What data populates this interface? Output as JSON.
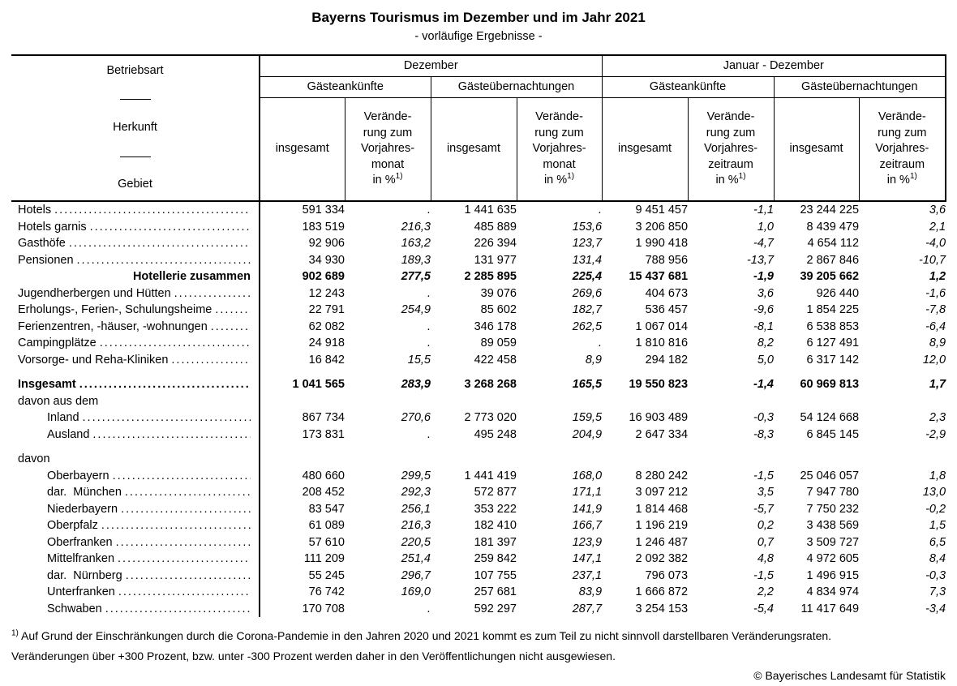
{
  "page": {
    "title": "Bayerns Tourismus im Dezember und im Jahr 2021",
    "subtitle": "- vorläufige Ergebnisse -",
    "footnote_marker": "1)",
    "footnote_line1": "Auf Grund der Einschränkungen durch die Corona-Pandemie in den Jahren 2020 und 2021 kommt es zum Teil zu nicht sinnvoll darstellbaren Veränderungsraten.",
    "footnote_line2": "Veränderungen über +300 Prozent, bzw. unter -300 Prozent werden daher in den Veröffentlichungen nicht ausgewiesen.",
    "copyright": "© Bayerisches Landesamt für Statistik"
  },
  "table": {
    "stub_header": {
      "line1": "Betriebsart",
      "line2": "Herkunft",
      "line3": "Gebiet"
    },
    "col_groups": [
      {
        "label": "Dezember",
        "subgroups": [
          {
            "label": "Gästeankünfte",
            "cols": [
              "insgesamt",
              "Verände-\nrung zum\nVorjahres-\nmonat\nin %"
            ]
          },
          {
            "label": "Gästeübernachtungen",
            "cols": [
              "insgesamt",
              "Verände-\nrung zum\nVorjahres-\nmonat\nin %"
            ]
          }
        ]
      },
      {
        "label": "Januar - Dezember",
        "subgroups": [
          {
            "label": "Gästeankünfte",
            "cols": [
              "insgesamt",
              "Verände-\nrung zum\nVorjahres-\nzeitraum\nin %"
            ]
          },
          {
            "label": "Gästeübernachtungen",
            "cols": [
              "insgesamt",
              "Verände-\nrung zum\nVorjahres-\nzeitraum\nin %"
            ]
          }
        ]
      }
    ],
    "rows": [
      {
        "label": "Hotels",
        "dots": true,
        "values": [
          "591 334",
          ".",
          "1 441 635",
          ".",
          "9 451 457",
          "-1,1",
          "23 244 225",
          "3,6"
        ]
      },
      {
        "label": "Hotels garnis",
        "dots": true,
        "values": [
          "183 519",
          "216,3",
          "485 889",
          "153,6",
          "3 206 850",
          "1,0",
          "8 439 479",
          "2,1"
        ]
      },
      {
        "label": "Gasthöfe",
        "dots": true,
        "values": [
          "92 906",
          "163,2",
          "226 394",
          "123,7",
          "1 990 418",
          "-4,7",
          "4 654 112",
          "-4,0"
        ]
      },
      {
        "label": "Pensionen",
        "dots": true,
        "values": [
          "34 930",
          "189,3",
          "131 977",
          "131,4",
          "788 956",
          "-13,7",
          "2 867 846",
          "-10,7"
        ]
      },
      {
        "label": "Hotellerie zusammen",
        "bold": true,
        "labelRight": true,
        "values": [
          "902 689",
          "277,5",
          "2 285 895",
          "225,4",
          "15 437 681",
          "-1,9",
          "39 205 662",
          "1,2"
        ]
      },
      {
        "label": "Jugendherbergen und Hütten",
        "dots": true,
        "values": [
          "12 243",
          ".",
          "39 076",
          "269,6",
          "404 673",
          "3,6",
          "926 440",
          "-1,6"
        ]
      },
      {
        "label": "Erholungs-, Ferien-, Schulungsheime",
        "dots": true,
        "values": [
          "22 791",
          "254,9",
          "85 602",
          "182,7",
          "536 457",
          "-9,6",
          "1 854 225",
          "-7,8"
        ]
      },
      {
        "label": "Ferienzentren, -häuser, -wohnungen",
        "dots": true,
        "values": [
          "62 082",
          ".",
          "346 178",
          "262,5",
          "1 067 014",
          "-8,1",
          "6 538 853",
          "-6,4"
        ]
      },
      {
        "label": "Campingplätze",
        "dots": true,
        "values": [
          "24 918",
          ".",
          "89 059",
          ".",
          "1 810 816",
          "8,2",
          "6 127 491",
          "8,9"
        ]
      },
      {
        "label": "Vorsorge- und Reha-Kliniken",
        "dots": true,
        "values": [
          "16 842",
          "15,5",
          "422 458",
          "8,9",
          "294 182",
          "5,0",
          "6 317 142",
          "12,0"
        ]
      },
      {
        "type": "spacer"
      },
      {
        "label": "Insgesamt",
        "bold": true,
        "dots": true,
        "values": [
          "1 041 565",
          "283,9",
          "3 268 268",
          "165,5",
          "19 550 823",
          "-1,4",
          "60 969 813",
          "1,7"
        ]
      },
      {
        "label": "davon aus dem",
        "labelOnly": true
      },
      {
        "label": "Inland",
        "indent": 1,
        "dots": true,
        "values": [
          "867 734",
          "270,6",
          "2 773 020",
          "159,5",
          "16 903 489",
          "-0,3",
          "54 124 668",
          "2,3"
        ]
      },
      {
        "label": "Ausland",
        "indent": 1,
        "dots": true,
        "values": [
          "173 831",
          ".",
          "495 248",
          "204,9",
          "2 647 334",
          "-8,3",
          "6 845 145",
          "-2,9"
        ]
      },
      {
        "type": "spacer"
      },
      {
        "label": "davon",
        "labelOnly": true
      },
      {
        "label": "Oberbayern",
        "indent": 1,
        "dots": true,
        "values": [
          "480 660",
          "299,5",
          "1 441 419",
          "168,0",
          "8 280 242",
          "-1,5",
          "25 046 057",
          "1,8"
        ]
      },
      {
        "label": "dar.  München",
        "indent": 1,
        "dots": true,
        "values": [
          "208 452",
          "292,3",
          "572 877",
          "171,1",
          "3 097 212",
          "3,5",
          "7 947 780",
          "13,0"
        ]
      },
      {
        "label": "Niederbayern",
        "indent": 1,
        "dots": true,
        "values": [
          "83 547",
          "256,1",
          "353 222",
          "141,9",
          "1 814 468",
          "-5,7",
          "7 750 232",
          "-0,2"
        ]
      },
      {
        "label": "Oberpfalz",
        "indent": 1,
        "dots": true,
        "values": [
          "61 089",
          "216,3",
          "182 410",
          "166,7",
          "1 196 219",
          "0,2",
          "3 438 569",
          "1,5"
        ]
      },
      {
        "label": "Oberfranken",
        "indent": 1,
        "dots": true,
        "values": [
          "57 610",
          "220,5",
          "181 397",
          "123,9",
          "1 246 487",
          "0,7",
          "3 509 727",
          "6,5"
        ]
      },
      {
        "label": "Mittelfranken",
        "indent": 1,
        "dots": true,
        "values": [
          "111 209",
          "251,4",
          "259 842",
          "147,1",
          "2 092 382",
          "4,8",
          "4 972 605",
          "8,4"
        ]
      },
      {
        "label": "dar.  Nürnberg",
        "indent": 1,
        "dots": true,
        "values": [
          "55 245",
          "296,7",
          "107 755",
          "237,1",
          "796 073",
          "-1,5",
          "1 496 915",
          "-0,3"
        ]
      },
      {
        "label": "Unterfranken",
        "indent": 1,
        "dots": true,
        "values": [
          "76 742",
          "169,0",
          "257 681",
          "83,9",
          "1 666 872",
          "2,2",
          "4 834 974",
          "7,3"
        ]
      },
      {
        "label": "Schwaben",
        "indent": 1,
        "dots": true,
        "values": [
          "170 708",
          ".",
          "592 297",
          "287,7",
          "3 254 153",
          "-5,4",
          "11 417 649",
          "-3,4"
        ]
      }
    ]
  }
}
